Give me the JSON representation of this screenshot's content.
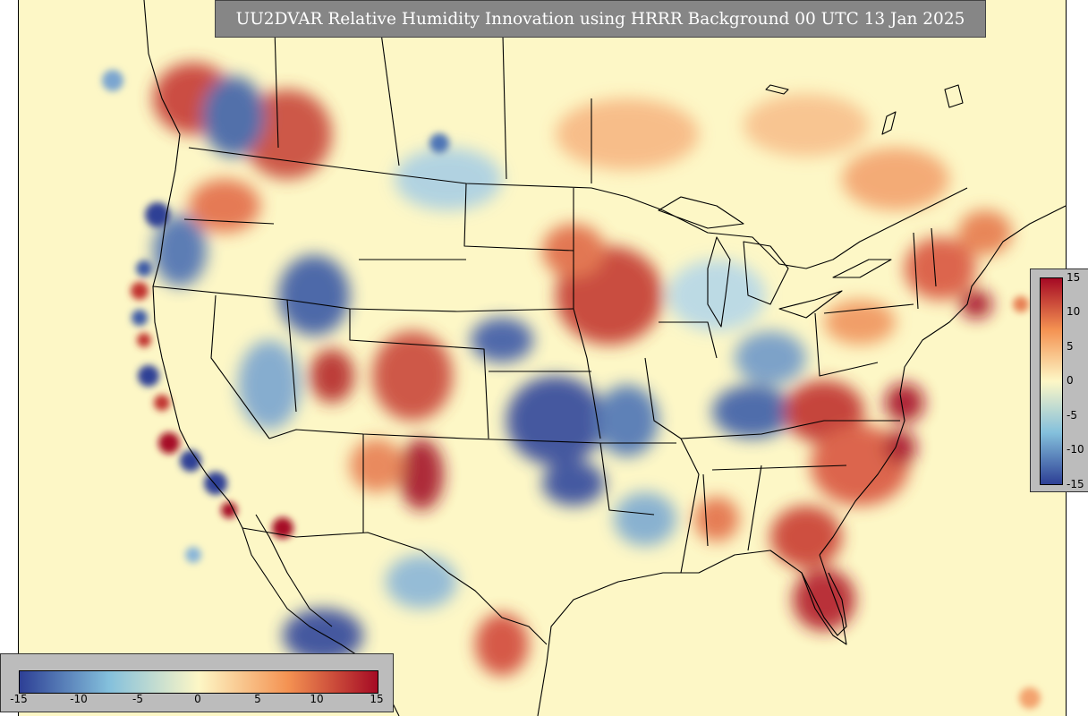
{
  "title": "UU2DVAR Relative Humidity Innovation using HRRR Background 00 UTC 13 Jan 2025",
  "colorbar": {
    "ticks": [
      "-15",
      "-10",
      "-5",
      "0",
      "5",
      "10",
      "15"
    ],
    "min": -15,
    "max": 15,
    "colors": {
      "low": "#2d3f95",
      "mid_low": "#84c0dc",
      "neutral": "#fdf7c6",
      "mid_high": "#f49252",
      "high": "#a50a24"
    }
  },
  "map": {
    "domain": "HRRR CONUS",
    "background_color": "#fdf7c6",
    "boundary_color": "#000000"
  }
}
